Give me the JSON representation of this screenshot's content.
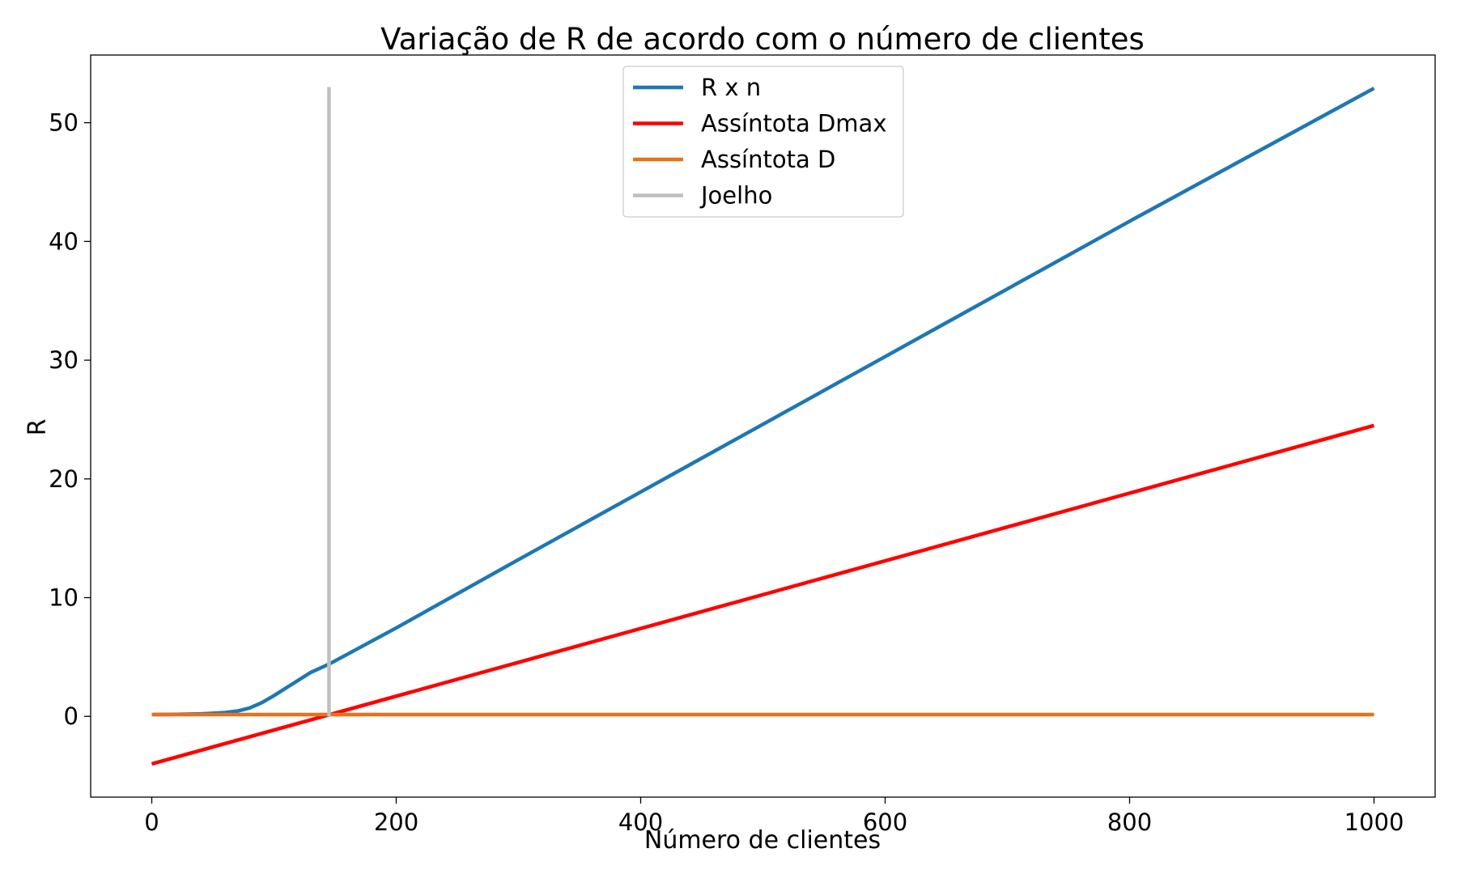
{
  "chart_data": {
    "type": "line",
    "title": "Variação de R de acordo com o número de clientes",
    "xlabel": "Número de clientes",
    "ylabel": "R",
    "xlim": [
      -50,
      1050
    ],
    "ylim": [
      -6.8,
      55.7
    ],
    "xticks": [
      0,
      200,
      400,
      600,
      800,
      1000
    ],
    "xtick_labels": [
      "0",
      "200",
      "400",
      "600",
      "800",
      "1000"
    ],
    "yticks": [
      0,
      10,
      20,
      30,
      40,
      50
    ],
    "ytick_labels": [
      "0",
      "10",
      "20",
      "30",
      "40",
      "50"
    ],
    "grid": false,
    "legend_position": "upper center",
    "series": [
      {
        "name": "R x n",
        "color": "#1f77b4",
        "x": [
          1,
          20,
          40,
          60,
          70,
          80,
          90,
          100,
          110,
          120,
          130,
          145,
          200,
          300,
          400,
          500,
          600,
          700,
          800,
          900,
          1000
        ],
        "y": [
          0.15,
          0.17,
          0.21,
          0.32,
          0.45,
          0.7,
          1.15,
          1.75,
          2.4,
          3.05,
          3.7,
          4.4,
          7.45,
          13.2,
          18.9,
          24.6,
          30.3,
          36.0,
          41.7,
          47.3,
          52.9
        ]
      },
      {
        "name": "Assíntota Dmax",
        "color": "#ff0000",
        "x": [
          0,
          1000
        ],
        "y": [
          -4.0,
          24.5
        ]
      },
      {
        "name": "Assíntota D",
        "color": "#e8711a",
        "x": [
          0,
          1000
        ],
        "y": [
          0.15,
          0.15
        ]
      },
      {
        "name": "Joelho",
        "color": "#bfbfbf",
        "x": [
          145,
          145
        ],
        "y": [
          0,
          53
        ]
      }
    ]
  }
}
